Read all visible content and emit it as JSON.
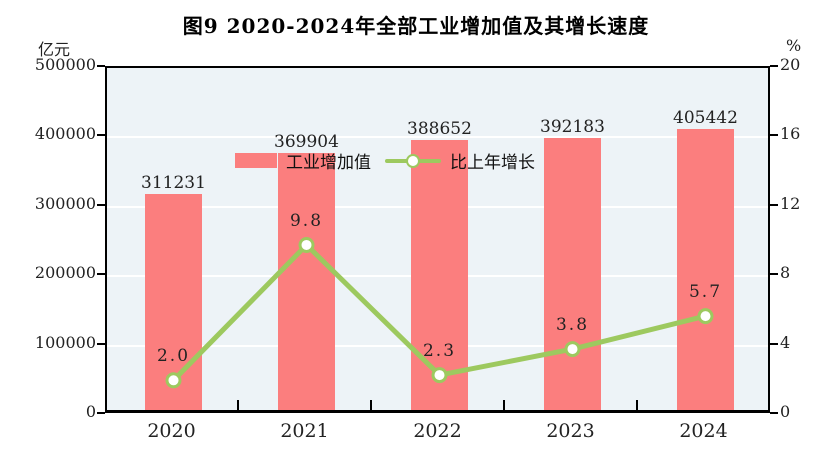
{
  "title": "图9  2020-2024年全部工业增加值及其增长速度",
  "left_axis": {
    "unit": "亿元",
    "ticks": [
      "500000",
      "400000",
      "300000",
      "200000",
      "100000",
      "0"
    ]
  },
  "right_axis": {
    "unit": "%",
    "ticks": [
      "20",
      "16",
      "12",
      "8",
      "4",
      "0"
    ]
  },
  "legend": {
    "items": [
      {
        "label": "工业增加值",
        "type": "bar"
      },
      {
        "label": "比上年增长",
        "type": "line"
      }
    ]
  },
  "colors": {
    "bar": "#FB7E7E",
    "line": "#9DC95F",
    "marker_fill": "#FFFFFF",
    "plot_bg": "#EDF3F7",
    "grid": "#FFFFFF",
    "axis": "#000000"
  },
  "chart_data": {
    "type": "bar+line",
    "title": "图9  2020-2024年全部工业增加值及其增长速度",
    "categories": [
      "2020",
      "2021",
      "2022",
      "2023",
      "2024"
    ],
    "series": [
      {
        "name": "工业增加值",
        "type": "bar",
        "axis": "left",
        "unit": "亿元",
        "values": [
          311231,
          369904,
          388652,
          392183,
          405442
        ],
        "color": "#FB7E7E"
      },
      {
        "name": "比上年增长",
        "type": "line",
        "axis": "right",
        "unit": "%",
        "values": [
          2.0,
          9.8,
          2.3,
          3.8,
          5.7
        ],
        "color": "#9DC95F"
      }
    ],
    "left_ylim": [
      0,
      500000
    ],
    "left_tick_step": 100000,
    "right_ylim": [
      0,
      20
    ],
    "right_tick_step": 4,
    "grid": true,
    "grid_color": "#FFFFFF",
    "plot_background": "#EDF3F7",
    "legend_position": "top-left-inside"
  }
}
